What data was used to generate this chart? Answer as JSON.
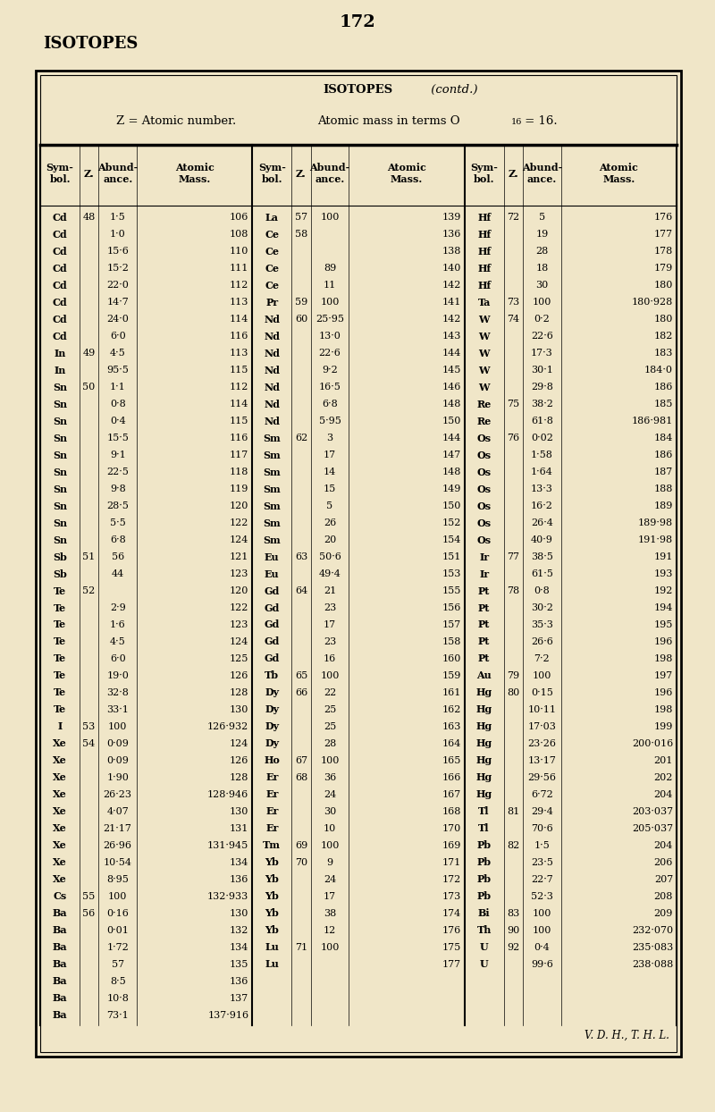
{
  "page_number": "172",
  "page_title": "ISOTOPES",
  "bg_color": "#f0e6c8",
  "rows": [
    [
      "Cd",
      "48",
      "1·5",
      "106",
      "La",
      "57",
      "100",
      "139",
      "Hf",
      "72",
      "5",
      "176"
    ],
    [
      "Cd",
      "",
      "1·0",
      "108",
      "Ce",
      "58",
      "",
      "136",
      "Hf",
      "",
      "19",
      "177"
    ],
    [
      "Cd",
      "",
      "15·6",
      "110",
      "Ce",
      "",
      "",
      "138",
      "Hf",
      "",
      "28",
      "178"
    ],
    [
      "Cd",
      "",
      "15·2",
      "111",
      "Ce",
      "",
      "89",
      "140",
      "Hf",
      "",
      "18",
      "179"
    ],
    [
      "Cd",
      "",
      "22·0",
      "112",
      "Ce",
      "",
      "11",
      "142",
      "Hf",
      "",
      "30",
      "180"
    ],
    [
      "Cd",
      "",
      "14·7",
      "113",
      "Pr",
      "59",
      "100",
      "141",
      "Ta",
      "73",
      "100",
      "180·928"
    ],
    [
      "Cd",
      "",
      "24·0",
      "114",
      "Nd",
      "60",
      "25·95",
      "142",
      "W",
      "74",
      "0·2",
      "180"
    ],
    [
      "Cd",
      "",
      "6·0",
      "116",
      "Nd",
      "",
      "13·0",
      "143",
      "W",
      "",
      "22·6",
      "182"
    ],
    [
      "In",
      "49",
      "4·5",
      "113",
      "Nd",
      "",
      "22·6",
      "144",
      "W",
      "",
      "17·3",
      "183"
    ],
    [
      "In",
      "",
      "95·5",
      "115",
      "Nd",
      "",
      "9·2",
      "145",
      "W",
      "",
      "30·1",
      "184·0"
    ],
    [
      "Sn",
      "50",
      "1·1",
      "112",
      "Nd",
      "",
      "16·5",
      "146",
      "W",
      "",
      "29·8",
      "186"
    ],
    [
      "Sn",
      "",
      "0·8",
      "114",
      "Nd",
      "",
      "6·8",
      "148",
      "Re",
      "75",
      "38·2",
      "185"
    ],
    [
      "Sn",
      "",
      "0·4",
      "115",
      "Nd",
      "",
      "5·95",
      "150",
      "Re",
      "",
      "61·8",
      "186·981"
    ],
    [
      "Sn",
      "",
      "15·5",
      "116",
      "Sm",
      "62",
      "3",
      "144",
      "Os",
      "76",
      "0·02",
      "184"
    ],
    [
      "Sn",
      "",
      "9·1",
      "117",
      "Sm",
      "",
      "17",
      "147",
      "Os",
      "",
      "1·58",
      "186"
    ],
    [
      "Sn",
      "",
      "22·5",
      "118",
      "Sm",
      "",
      "14",
      "148",
      "Os",
      "",
      "1·64",
      "187"
    ],
    [
      "Sn",
      "",
      "9·8",
      "119",
      "Sm",
      "",
      "15",
      "149",
      "Os",
      "",
      "13·3",
      "188"
    ],
    [
      "Sn",
      "",
      "28·5",
      "120",
      "Sm",
      "",
      "5",
      "150",
      "Os",
      "",
      "16·2",
      "189"
    ],
    [
      "Sn",
      "",
      "5·5",
      "122",
      "Sm",
      "",
      "26",
      "152",
      "Os",
      "",
      "26·4",
      "189·98"
    ],
    [
      "Sn",
      "",
      "6·8",
      "124",
      "Sm",
      "",
      "20",
      "154",
      "Os",
      "",
      "40·9",
      "191·98"
    ],
    [
      "Sb",
      "51",
      "56",
      "121",
      "Eu",
      "63",
      "50·6",
      "151",
      "Ir",
      "77",
      "38·5",
      "191"
    ],
    [
      "Sb",
      "",
      "44",
      "123",
      "Eu",
      "",
      "49·4",
      "153",
      "Ir",
      "",
      "61·5",
      "193"
    ],
    [
      "Te",
      "52",
      "",
      "120",
      "Gd",
      "64",
      "21",
      "155",
      "Pt",
      "78",
      "0·8",
      "192"
    ],
    [
      "Te",
      "",
      "2·9",
      "122",
      "Gd",
      "",
      "23",
      "156",
      "Pt",
      "",
      "30·2",
      "194"
    ],
    [
      "Te",
      "",
      "1·6",
      "123",
      "Gd",
      "",
      "17",
      "157",
      "Pt",
      "",
      "35·3",
      "195"
    ],
    [
      "Te",
      "",
      "4·5",
      "124",
      "Gd",
      "",
      "23",
      "158",
      "Pt",
      "",
      "26·6",
      "196"
    ],
    [
      "Te",
      "",
      "6·0",
      "125",
      "Gd",
      "",
      "16",
      "160",
      "Pt",
      "",
      "7·2",
      "198"
    ],
    [
      "Te",
      "",
      "19·0",
      "126",
      "Tb",
      "65",
      "100",
      "159",
      "Au",
      "79",
      "100",
      "197"
    ],
    [
      "Te",
      "",
      "32·8",
      "128",
      "Dy",
      "66",
      "22",
      "161",
      "Hg",
      "80",
      "0·15",
      "196"
    ],
    [
      "Te",
      "",
      "33·1",
      "130",
      "Dy",
      "",
      "25",
      "162",
      "Hg",
      "",
      "10·11",
      "198"
    ],
    [
      "I",
      "53",
      "100",
      "126·932",
      "Dy",
      "",
      "25",
      "163",
      "Hg",
      "",
      "17·03",
      "199"
    ],
    [
      "Xe",
      "54",
      "0·09",
      "124",
      "Dy",
      "",
      "28",
      "164",
      "Hg",
      "",
      "23·26",
      "200·016"
    ],
    [
      "Xe",
      "",
      "0·09",
      "126",
      "Ho",
      "67",
      "100",
      "165",
      "Hg",
      "",
      "13·17",
      "201"
    ],
    [
      "Xe",
      "",
      "1·90",
      "128",
      "Er",
      "68",
      "36",
      "166",
      "Hg",
      "",
      "29·56",
      "202"
    ],
    [
      "Xe",
      "",
      "26·23",
      "128·946",
      "Er",
      "",
      "24",
      "167",
      "Hg",
      "",
      "6·72",
      "204"
    ],
    [
      "Xe",
      "",
      "4·07",
      "130",
      "Er",
      "",
      "30",
      "168",
      "Tl",
      "81",
      "29·4",
      "203·037"
    ],
    [
      "Xe",
      "",
      "21·17",
      "131",
      "Er",
      "",
      "10",
      "170",
      "Tl",
      "",
      "70·6",
      "205·037"
    ],
    [
      "Xe",
      "",
      "26·96",
      "131·945",
      "Tm",
      "69",
      "100",
      "169",
      "Pb",
      "82",
      "1·5",
      "204"
    ],
    [
      "Xe",
      "",
      "10·54",
      "134",
      "Yb",
      "70",
      "9",
      "171",
      "Pb",
      "",
      "23·5",
      "206"
    ],
    [
      "Xe",
      "",
      "8·95",
      "136",
      "Yb",
      "",
      "24",
      "172",
      "Pb",
      "",
      "22·7",
      "207"
    ],
    [
      "Cs",
      "55",
      "100",
      "132·933",
      "Yb",
      "",
      "17",
      "173",
      "Pb",
      "",
      "52·3",
      "208"
    ],
    [
      "Ba",
      "56",
      "0·16",
      "130",
      "Yb",
      "",
      "38",
      "174",
      "Bi",
      "83",
      "100",
      "209"
    ],
    [
      "Ba",
      "",
      "0·01",
      "132",
      "Yb",
      "",
      "12",
      "176",
      "Th",
      "90",
      "100",
      "232·070"
    ],
    [
      "Ba",
      "",
      "1·72",
      "134",
      "Lu",
      "71",
      "100",
      "175",
      "U",
      "92",
      "0·4",
      "235·083"
    ],
    [
      "Ba",
      "",
      "57",
      "135",
      "Lu",
      "",
      "",
      "177",
      "U",
      "",
      "99·6",
      "238·088"
    ],
    [
      "Ba",
      "",
      "8·5",
      "136",
      "",
      "",
      "",
      "",
      "",
      "",
      "",
      ""
    ],
    [
      "Ba",
      "",
      "10·8",
      "137",
      "",
      "",
      "",
      "",
      "",
      "",
      "",
      ""
    ],
    [
      "Ba",
      "",
      "73·1",
      "137·916",
      "",
      "",
      "",
      "",
      "",
      "",
      "",
      ""
    ]
  ],
  "footer": "V. D. H., T. H. L."
}
